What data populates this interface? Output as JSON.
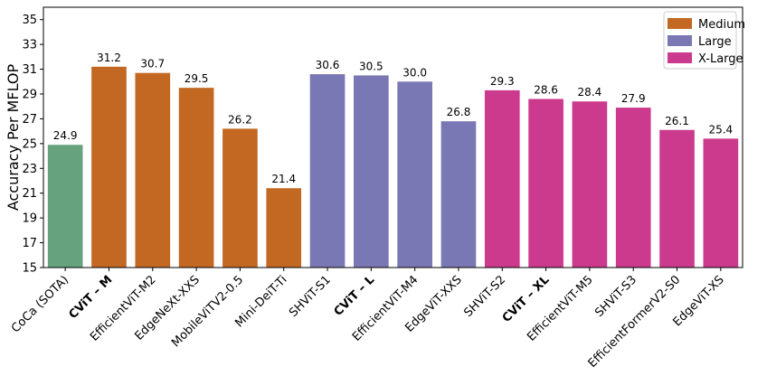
{
  "chart_data": {
    "type": "bar",
    "title": "",
    "xlabel": "",
    "ylabel": "Accuracy Per MFLOP",
    "ylim": [
      15,
      36
    ],
    "yticks": [
      15,
      17,
      19,
      21,
      23,
      25,
      27,
      29,
      31,
      33,
      35
    ],
    "grid": false,
    "legend_position": "top-right",
    "groups": [
      {
        "name": "SOTA",
        "color": "#67a27e",
        "in_legend": false
      },
      {
        "name": "Medium",
        "color": "#c26823",
        "in_legend": true
      },
      {
        "name": "Large",
        "color": "#7a78b4",
        "in_legend": true
      },
      {
        "name": "X-Large",
        "color": "#cb3a8d",
        "in_legend": true
      }
    ],
    "bars": [
      {
        "label": "CoCa (SOTA)",
        "value": 24.9,
        "value_label": "24.9",
        "group": "SOTA",
        "bold": false
      },
      {
        "label": "CViT – M",
        "value": 31.2,
        "value_label": "31.2",
        "group": "Medium",
        "bold": true
      },
      {
        "label": "EfficientViT-M2",
        "value": 30.7,
        "value_label": "30.7",
        "group": "Medium",
        "bold": false
      },
      {
        "label": "EdgeNeXt-XXS",
        "value": 29.5,
        "value_label": "29.5",
        "group": "Medium",
        "bold": false
      },
      {
        "label": "MobileViTV2-0.5",
        "value": 26.2,
        "value_label": "26.2",
        "group": "Medium",
        "bold": false
      },
      {
        "label": "Mini-DeiT-Ti",
        "value": 21.4,
        "value_label": "21.4",
        "group": "Medium",
        "bold": false
      },
      {
        "label": "SHViT-S1",
        "value": 30.6,
        "value_label": "30.6",
        "group": "Large",
        "bold": false
      },
      {
        "label": "CViT – L",
        "value": 30.5,
        "value_label": "30.5",
        "group": "Large",
        "bold": true
      },
      {
        "label": "EfficientViT-M4",
        "value": 30.0,
        "value_label": "30.0",
        "group": "Large",
        "bold": false
      },
      {
        "label": "EdgeViT-XXS",
        "value": 26.8,
        "value_label": "26.8",
        "group": "Large",
        "bold": false
      },
      {
        "label": "SHViT-S2",
        "value": 29.3,
        "value_label": "29.3",
        "group": "X-Large",
        "bold": false
      },
      {
        "label": "CViT – XL",
        "value": 28.6,
        "value_label": "28.6",
        "group": "X-Large",
        "bold": true
      },
      {
        "label": "EfficientViT-M5",
        "value": 28.4,
        "value_label": "28.4",
        "group": "X-Large",
        "bold": false
      },
      {
        "label": "SHViT-S3",
        "value": 27.9,
        "value_label": "27.9",
        "group": "X-Large",
        "bold": false
      },
      {
        "label": "EfficientFormerV2-S0",
        "value": 26.1,
        "value_label": "26.1",
        "group": "X-Large",
        "bold": false
      },
      {
        "label": "EdgeViT-XS",
        "value": 25.4,
        "value_label": "25.4",
        "group": "X-Large",
        "bold": false
      }
    ]
  }
}
